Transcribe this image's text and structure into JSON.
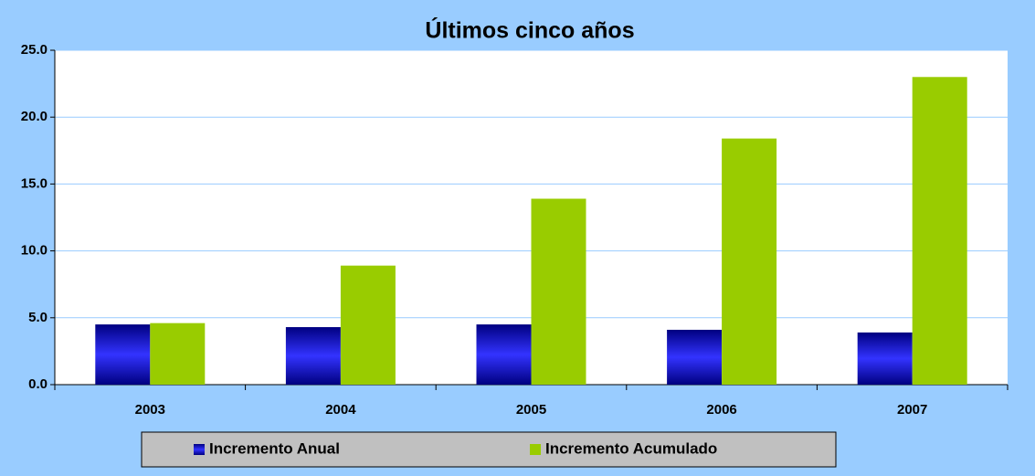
{
  "chart_data": {
    "type": "bar",
    "title": "Últimos cinco años",
    "categories": [
      "2003",
      "2004",
      "2005",
      "2006",
      "2007"
    ],
    "series": [
      {
        "name": "Incremento Anual",
        "color": "#3333ff",
        "values": [
          4.5,
          4.3,
          4.5,
          4.1,
          3.9
        ]
      },
      {
        "name": "Incremento Acumulado",
        "color": "#99cc00",
        "values": [
          4.6,
          8.9,
          13.9,
          18.4,
          23.0
        ]
      }
    ],
    "ylim": [
      0,
      25
    ],
    "yticks": [
      {
        "value": 0,
        "label": "0.0"
      },
      {
        "value": 5,
        "label": "5.0"
      },
      {
        "value": 10,
        "label": "10.0"
      },
      {
        "value": 15,
        "label": "15.0"
      },
      {
        "value": 20,
        "label": "20.0"
      },
      {
        "value": 25,
        "label": "25.0"
      }
    ],
    "grid": true,
    "legend": "bottom"
  }
}
